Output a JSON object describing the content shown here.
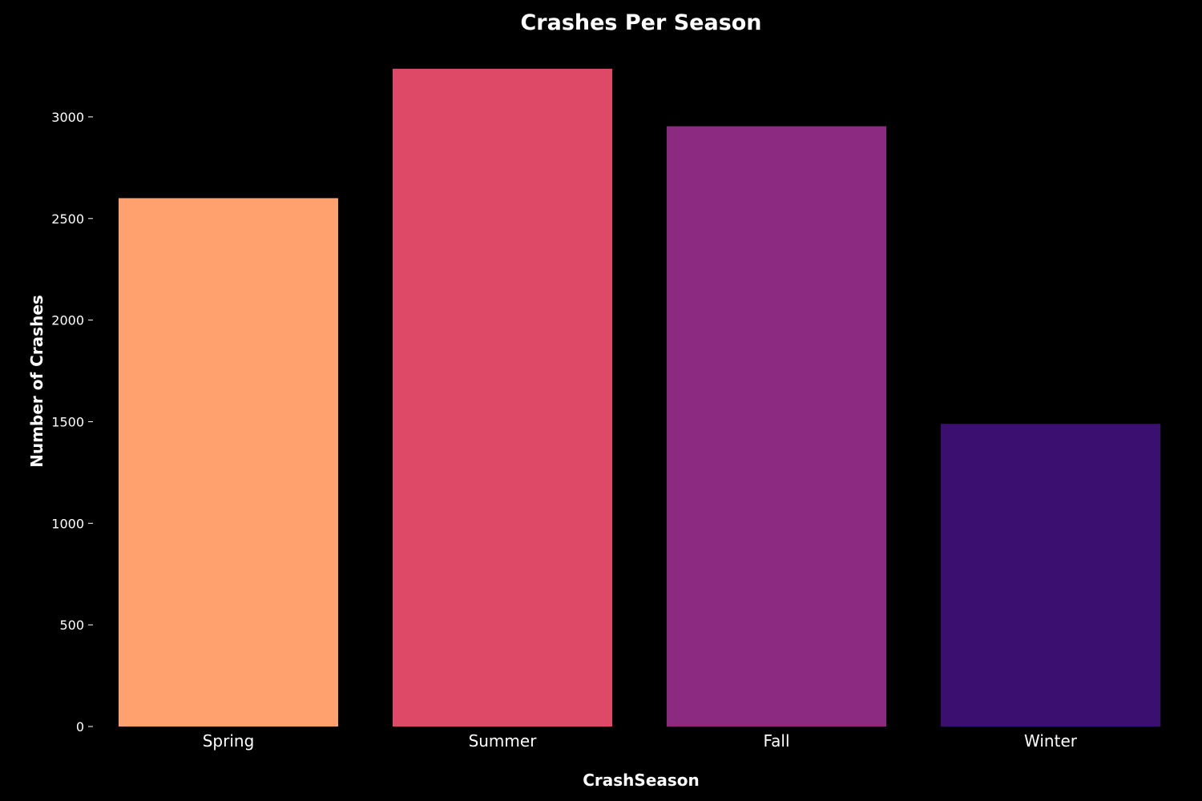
{
  "chart_data": {
    "type": "bar",
    "title": "Crashes Per Season",
    "xlabel": "CrashSeason",
    "ylabel": "Number of Crashes",
    "categories": [
      "Spring",
      "Summer",
      "Fall",
      "Winter"
    ],
    "values": [
      2600,
      3237,
      2954,
      1489
    ],
    "colors": [
      "#fea16e",
      "#de4968",
      "#8c2981",
      "#3b0f70"
    ],
    "yticks": [
      0,
      500,
      1000,
      1500,
      2000,
      2500,
      3000
    ],
    "ylim": [
      0,
      3400
    ],
    "grid": false,
    "legend": "none",
    "background": "#000000",
    "text_color": "#ffffff"
  }
}
